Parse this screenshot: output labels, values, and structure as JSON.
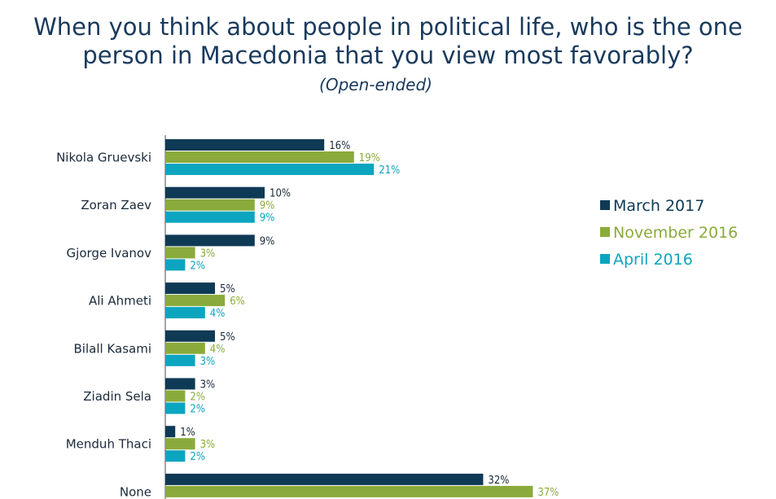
{
  "header": {
    "title_line1": "When you think about people in political life, who is the one",
    "title_line2": "person in Macedonia that you view most favorably?",
    "subtitle": "(Open-ended)"
  },
  "chart_data": {
    "type": "bar",
    "orientation": "horizontal",
    "categories": [
      "Nikola Gruevski",
      "Zoran Zaev",
      "Gjorge Ivanov",
      "Ali Ahmeti",
      "Bilall Kasami",
      "Ziadin Sela",
      "Menduh Thaci",
      "None"
    ],
    "series": [
      {
        "name": "March 2017",
        "color": "#0f3a55",
        "values": [
          16,
          10,
          9,
          5,
          5,
          3,
          1,
          32
        ]
      },
      {
        "name": "November 2016",
        "color": "#8aab3c",
        "values": [
          19,
          9,
          3,
          6,
          4,
          2,
          3,
          37
        ]
      },
      {
        "name": "April 2016",
        "color": "#0ba5bf",
        "values": [
          21,
          9,
          2,
          4,
          3,
          2,
          2,
          null
        ]
      }
    ],
    "value_suffix": "%",
    "legend_position": "right",
    "grid": false
  }
}
